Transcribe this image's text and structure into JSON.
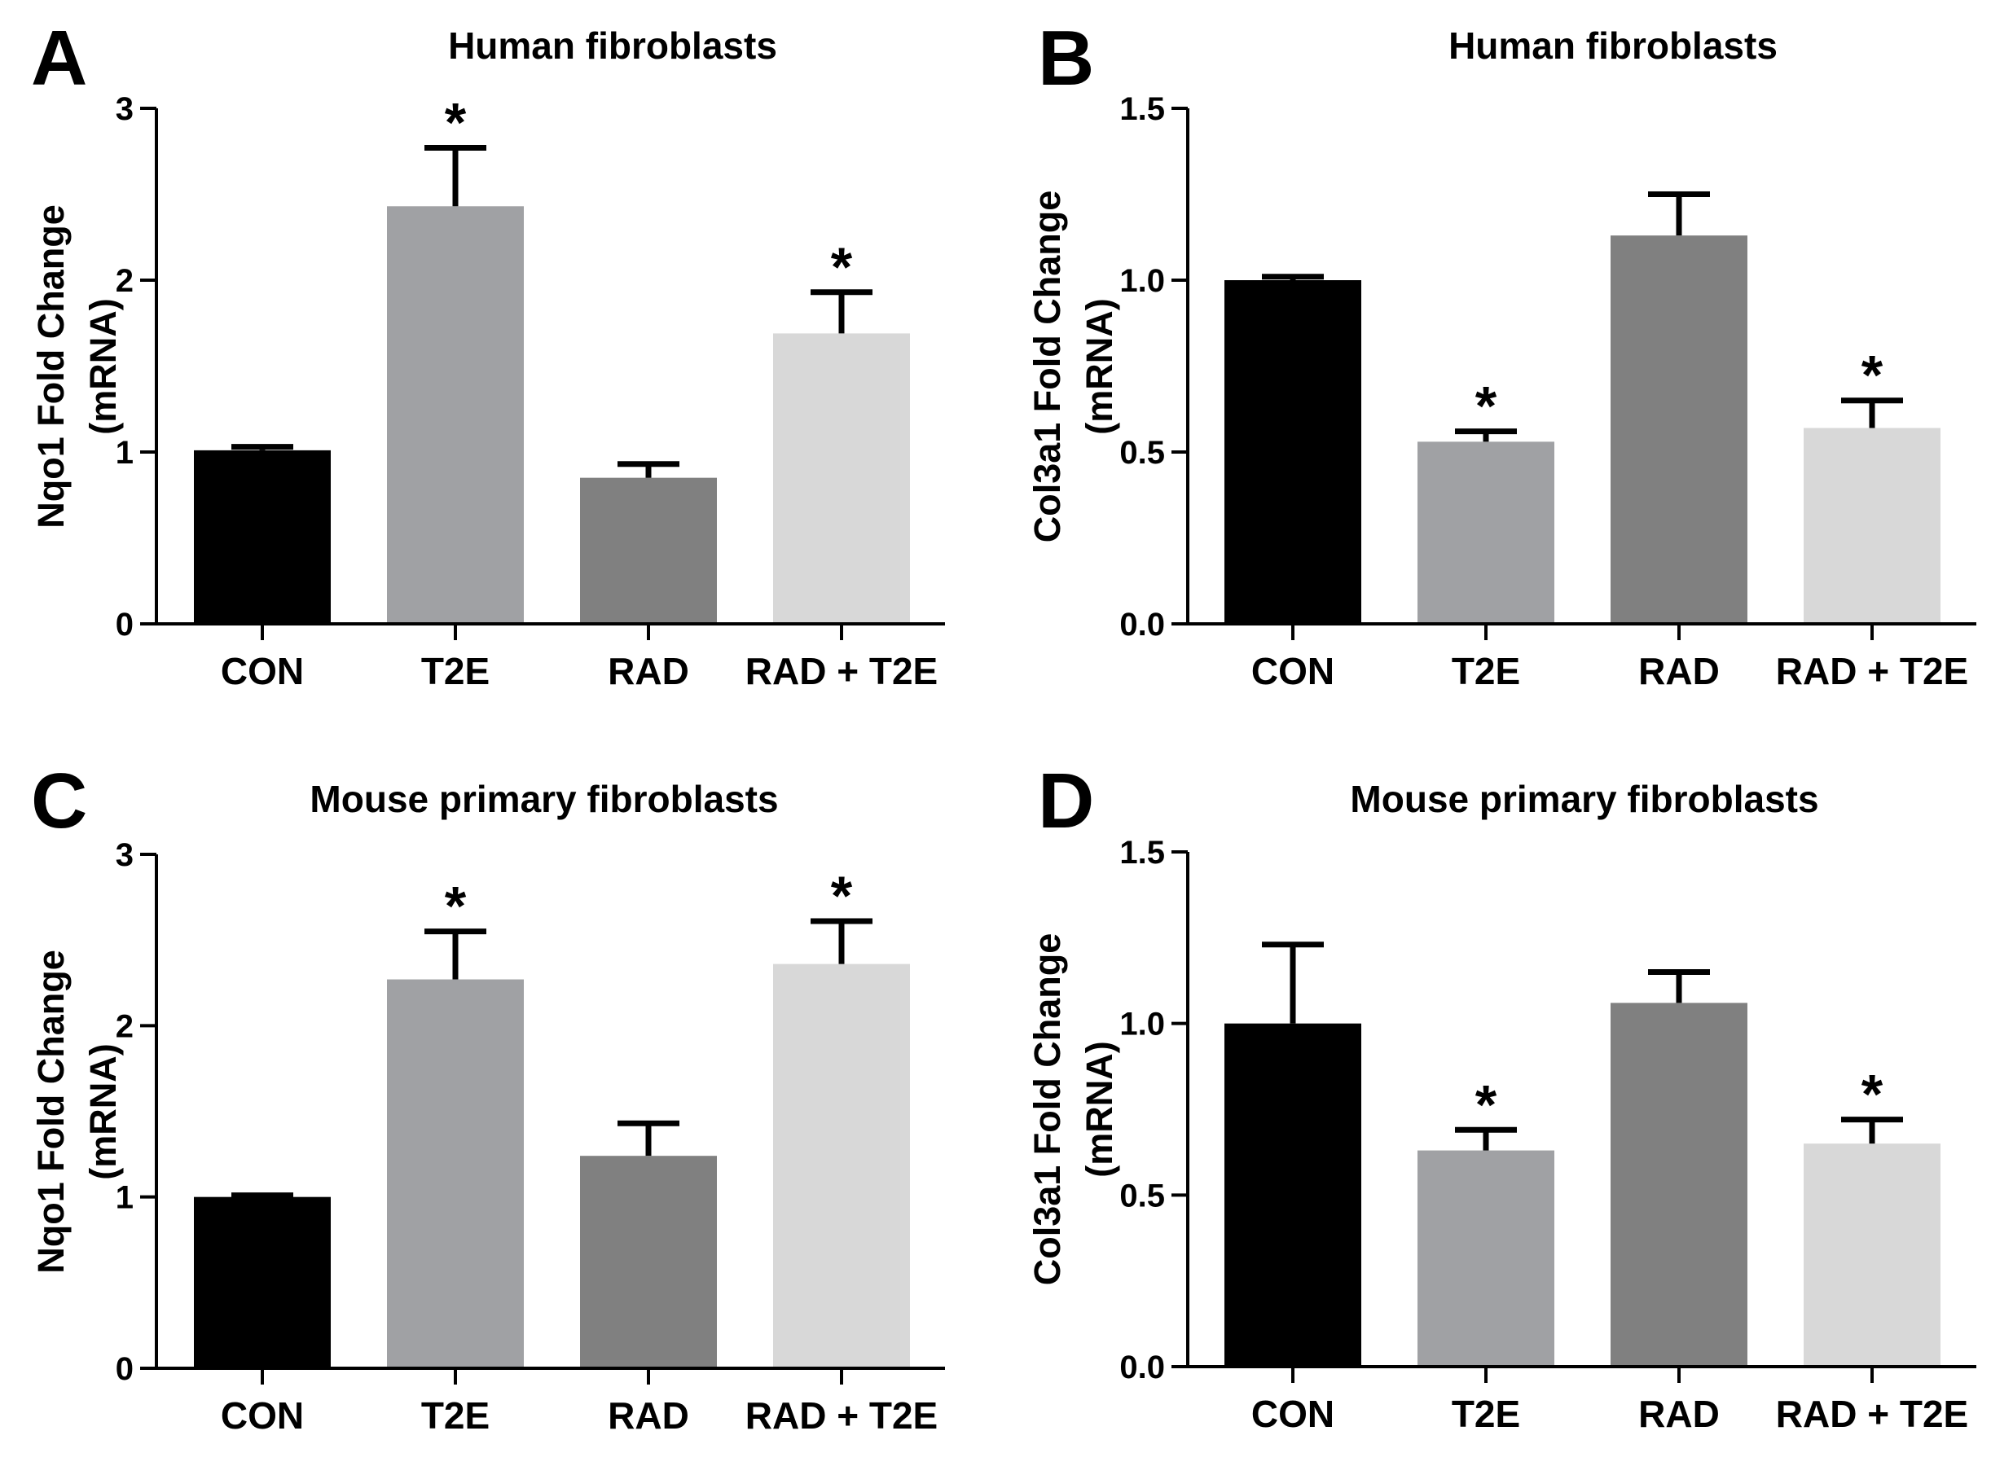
{
  "figure": {
    "panels": [
      {
        "letter": "A"
      },
      {
        "letter": "B"
      },
      {
        "letter": "C"
      },
      {
        "letter": "D"
      }
    ]
  },
  "chart_data": [
    {
      "panel": "A",
      "type": "bar",
      "title": "Human fibroblasts",
      "ylabel_line1": "Nqo1 Fold Change",
      "ylabel_line2": "(mRNA)",
      "categories": [
        "CON",
        "T2E",
        "RAD",
        "RAD + T2E"
      ],
      "values": [
        1.01,
        2.43,
        0.85,
        1.69
      ],
      "errors": [
        0.02,
        0.34,
        0.08,
        0.24
      ],
      "significant": [
        false,
        true,
        false,
        true
      ],
      "colors": [
        "#000000",
        "#a0a1a4",
        "#808080",
        "#d8d8d8"
      ],
      "ylim": [
        0,
        3
      ],
      "yticks": [
        0,
        1,
        2,
        3
      ],
      "ytick_labels": [
        "0",
        "1",
        "2",
        "3"
      ],
      "grid": false
    },
    {
      "panel": "B",
      "type": "bar",
      "title": "Human fibroblasts",
      "ylabel_line1": "Col3a1 Fold Change",
      "ylabel_line2": "(mRNA)",
      "categories": [
        "CON",
        "T2E",
        "RAD",
        "RAD + T2E"
      ],
      "values": [
        1.0,
        0.53,
        1.13,
        0.57
      ],
      "errors": [
        0.01,
        0.03,
        0.12,
        0.08
      ],
      "significant": [
        false,
        true,
        false,
        true
      ],
      "colors": [
        "#000000",
        "#a0a1a4",
        "#808080",
        "#d8d8d8"
      ],
      "ylim": [
        0,
        1.5
      ],
      "yticks": [
        0,
        0.5,
        1.0,
        1.5
      ],
      "ytick_labels": [
        "0.0",
        "0.5",
        "1.0",
        "1.5"
      ],
      "grid": false
    },
    {
      "panel": "C",
      "type": "bar",
      "title": "Mouse primary fibroblasts",
      "ylabel_line1": "Nqo1 Fold Change",
      "ylabel_line2": "(mRNA)",
      "categories": [
        "CON",
        "T2E",
        "RAD",
        "RAD + T2E"
      ],
      "values": [
        1.0,
        2.27,
        1.24,
        2.36
      ],
      "errors": [
        0.01,
        0.28,
        0.19,
        0.25
      ],
      "significant": [
        false,
        true,
        false,
        true
      ],
      "colors": [
        "#000000",
        "#a0a1a4",
        "#808080",
        "#d8d8d8"
      ],
      "ylim": [
        0,
        3
      ],
      "yticks": [
        0,
        1,
        2,
        3
      ],
      "ytick_labels": [
        "0",
        "1",
        "2",
        "3"
      ],
      "grid": false
    },
    {
      "panel": "D",
      "type": "bar",
      "title": "Mouse primary fibroblasts",
      "ylabel_line1": "Col3a1 Fold Change",
      "ylabel_line2": "(mRNA)",
      "categories": [
        "CON",
        "T2E",
        "RAD",
        "RAD + T2E"
      ],
      "values": [
        1.0,
        0.63,
        1.06,
        0.65
      ],
      "errors": [
        0.23,
        0.06,
        0.09,
        0.07
      ],
      "significant": [
        false,
        true,
        false,
        true
      ],
      "colors": [
        "#000000",
        "#a0a1a4",
        "#808080",
        "#d8d8d8"
      ],
      "ylim": [
        0,
        1.5
      ],
      "yticks": [
        0,
        0.5,
        1.0,
        1.5
      ],
      "ytick_labels": [
        "0.0",
        "0.5",
        "1.0",
        "1.5"
      ],
      "grid": false
    }
  ]
}
